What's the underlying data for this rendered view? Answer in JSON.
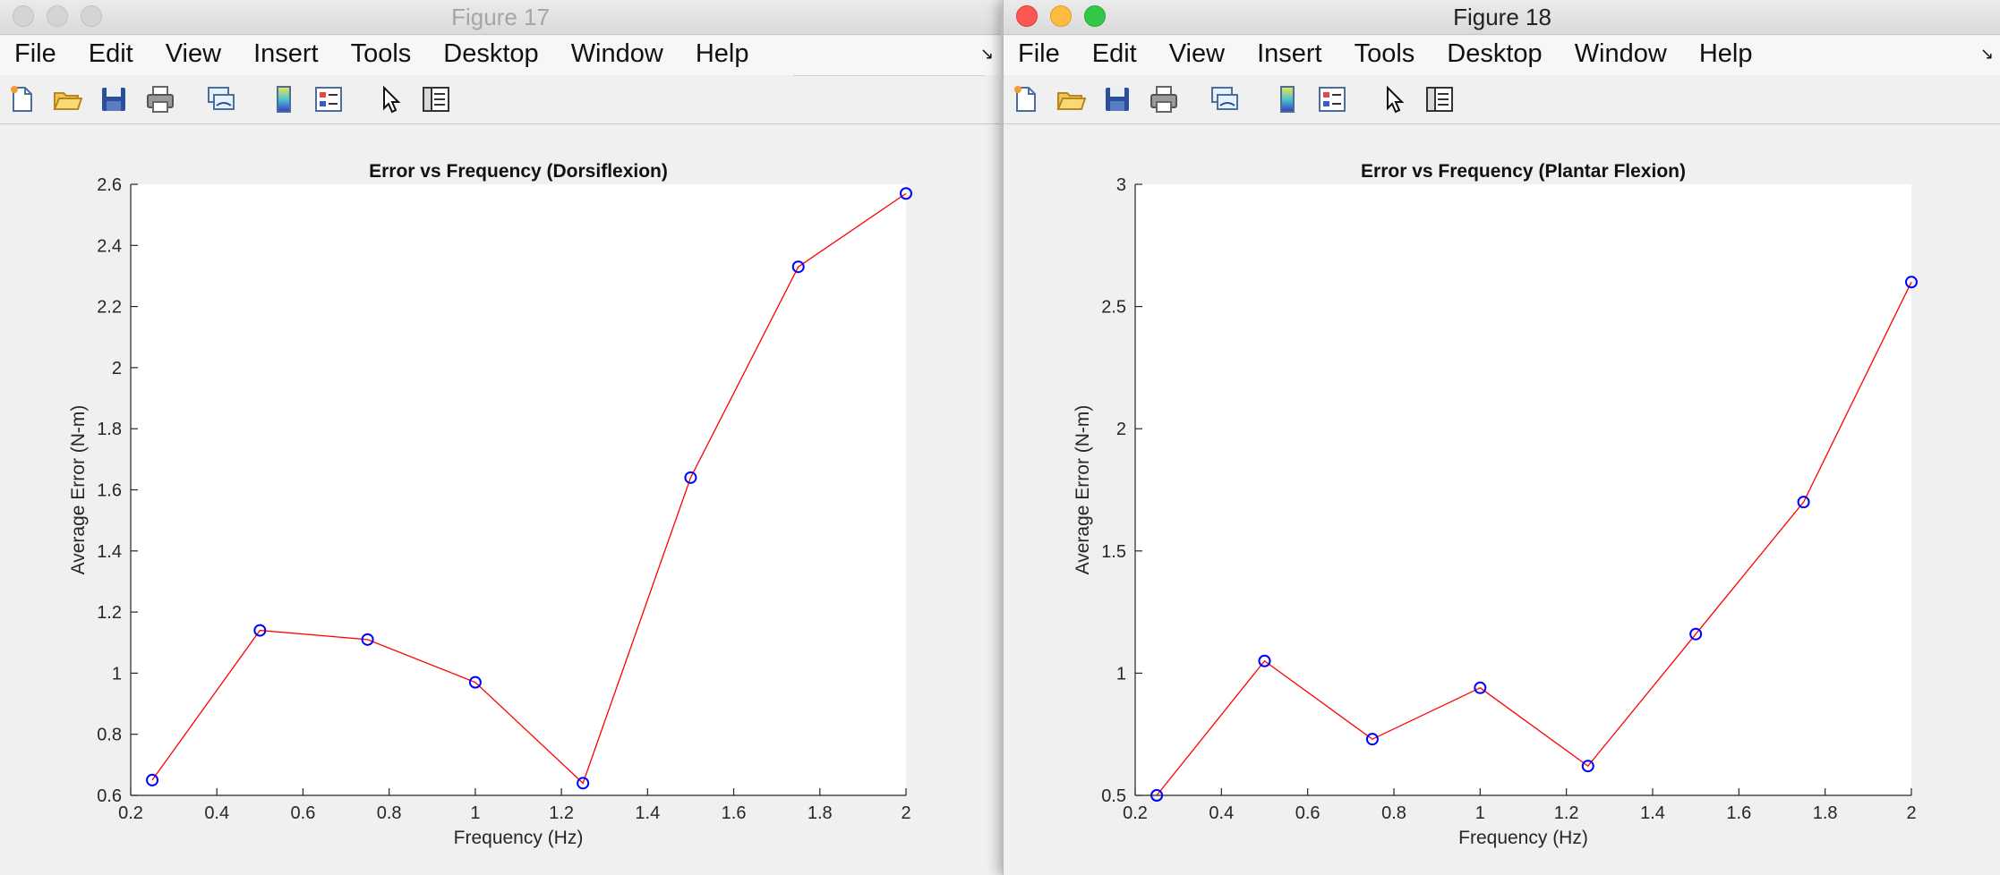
{
  "menu_items": [
    "File",
    "Edit",
    "View",
    "Insert",
    "Tools",
    "Desktop",
    "Window",
    "Help"
  ],
  "toolbar_icons": [
    "new-figure-icon",
    "open-file-icon",
    "save-icon",
    "print-icon",
    "link-plot-icon",
    "colorbar-icon",
    "legend-icon",
    "edit-plot-icon",
    "property-inspector-icon"
  ],
  "colors": {
    "line": "#ff0000",
    "marker": "#0000ff",
    "axes_bg": "#ffffff",
    "figure_bg": "#f0f0f0"
  },
  "windows": [
    {
      "title": "Figure 17",
      "active": false
    },
    {
      "title": "Figure 18",
      "active": true
    }
  ],
  "chart_data": [
    {
      "type": "line",
      "title": "Error vs Frequency (Dorsiflexion)",
      "xlabel": "Frequency (Hz)",
      "ylabel": "Average Error (N-m)",
      "x": [
        0.25,
        0.5,
        0.75,
        1.0,
        1.25,
        1.5,
        1.75,
        2.0
      ],
      "y": [
        0.65,
        1.14,
        1.11,
        0.97,
        0.64,
        1.64,
        2.33,
        2.57
      ],
      "xlim": [
        0.2,
        2.0
      ],
      "ylim": [
        0.6,
        2.6
      ],
      "xticks": [
        0.2,
        0.4,
        0.6,
        0.8,
        1.0,
        1.2,
        1.4,
        1.6,
        1.8,
        2.0
      ],
      "xtick_labels": [
        "0.2",
        "0.4",
        "0.6",
        "0.8",
        "1",
        "1.2",
        "1.4",
        "1.6",
        "1.8",
        "2"
      ],
      "yticks": [
        0.6,
        0.8,
        1.0,
        1.2,
        1.4,
        1.6,
        1.8,
        2.0,
        2.2,
        2.4,
        2.6
      ],
      "ytick_labels": [
        "0.6",
        "0.8",
        "1",
        "1.2",
        "1.4",
        "1.6",
        "1.8",
        "2",
        "2.2",
        "2.4",
        "2.6"
      ],
      "grid": false,
      "marker": "o"
    },
    {
      "type": "line",
      "title": "Error vs Frequency (Plantar Flexion)",
      "xlabel": "Frequency (Hz)",
      "ylabel": "Average Error (N-m)",
      "x": [
        0.25,
        0.5,
        0.75,
        1.0,
        1.25,
        1.5,
        1.75,
        2.0
      ],
      "y": [
        0.5,
        1.05,
        0.73,
        0.94,
        0.62,
        1.16,
        1.7,
        2.6
      ],
      "xlim": [
        0.2,
        2.0
      ],
      "ylim": [
        0.5,
        3.0
      ],
      "xticks": [
        0.2,
        0.4,
        0.6,
        0.8,
        1.0,
        1.2,
        1.4,
        1.6,
        1.8,
        2.0
      ],
      "xtick_labels": [
        "0.2",
        "0.4",
        "0.6",
        "0.8",
        "1",
        "1.2",
        "1.4",
        "1.6",
        "1.8",
        "2"
      ],
      "yticks": [
        0.5,
        1.0,
        1.5,
        2.0,
        2.5,
        3.0
      ],
      "ytick_labels": [
        "0.5",
        "1",
        "1.5",
        "2",
        "2.5",
        "3"
      ],
      "grid": false,
      "marker": "o"
    }
  ]
}
